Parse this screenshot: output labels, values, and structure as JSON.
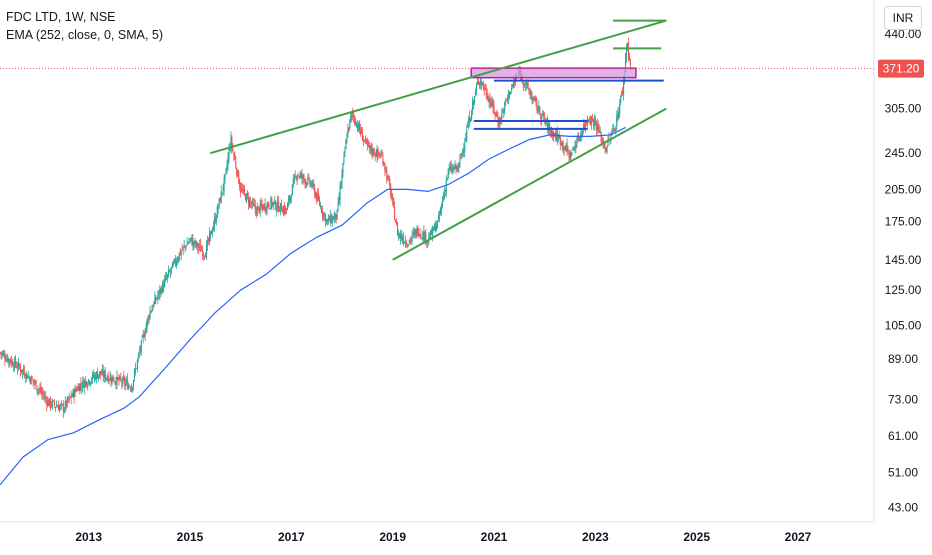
{
  "legend": {
    "symbol": "FDC LTD, 1W, NSE",
    "indicator": "EMA (252, close, 0, SMA, 5)"
  },
  "currency": "INR",
  "last_price_label": "371.20",
  "colors": {
    "candle_up": "#26a69a",
    "candle_down": "#ef5350",
    "ema": "#2962ff",
    "trendline": "#43a047",
    "support_line": "#1e4fd0",
    "zone_fill": "#d99ae0",
    "zone_stroke": "#9c27b0",
    "last_price": "#ef5350"
  },
  "chart_data": {
    "type": "candlestick",
    "y_scale": "log",
    "ylim": [
      40,
      520
    ],
    "xlim": [
      2011.25,
      2028.5
    ],
    "y_ticks": [
      {
        "value": 440,
        "label": "440.00"
      },
      {
        "value": 305,
        "label": "305.00"
      },
      {
        "value": 245,
        "label": "245.00"
      },
      {
        "value": 205,
        "label": "205.00"
      },
      {
        "value": 175,
        "label": "175.00"
      },
      {
        "value": 145,
        "label": "145.00"
      },
      {
        "value": 125,
        "label": "125.00"
      },
      {
        "value": 105,
        "label": "105.00"
      },
      {
        "value": 89,
        "label": "89.00"
      },
      {
        "value": 73,
        "label": "73.00"
      },
      {
        "value": 61,
        "label": "61.00"
      },
      {
        "value": 51,
        "label": "51.00"
      },
      {
        "value": 43,
        "label": "43.00"
      }
    ],
    "x_ticks": [
      {
        "value": 2013,
        "label": "2013"
      },
      {
        "value": 2015,
        "label": "2015"
      },
      {
        "value": 2017,
        "label": "2017"
      },
      {
        "value": 2019,
        "label": "2019"
      },
      {
        "value": 2021,
        "label": "2021"
      },
      {
        "value": 2023,
        "label": "2023"
      },
      {
        "value": 2025,
        "label": "2025"
      },
      {
        "value": 2027,
        "label": "2027"
      }
    ],
    "last_price": 371.2,
    "price_path": [
      [
        2011.25,
        92
      ],
      [
        2011.6,
        86
      ],
      [
        2011.9,
        80
      ],
      [
        2012.2,
        72
      ],
      [
        2012.5,
        70
      ],
      [
        2012.8,
        78
      ],
      [
        2013.2,
        83
      ],
      [
        2013.6,
        80
      ],
      [
        2013.85,
        78
      ],
      [
        2014.0,
        92
      ],
      [
        2014.2,
        112
      ],
      [
        2014.5,
        130
      ],
      [
        2014.8,
        150
      ],
      [
        2015.0,
        160
      ],
      [
        2015.3,
        150
      ],
      [
        2015.5,
        178
      ],
      [
        2015.7,
        218
      ],
      [
        2015.8,
        262
      ],
      [
        2016.0,
        205
      ],
      [
        2016.3,
        185
      ],
      [
        2016.6,
        192
      ],
      [
        2016.9,
        185
      ],
      [
        2017.1,
        222
      ],
      [
        2017.4,
        210
      ],
      [
        2017.7,
        175
      ],
      [
        2017.9,
        180
      ],
      [
        2018.1,
        270
      ],
      [
        2018.2,
        298
      ],
      [
        2018.5,
        252
      ],
      [
        2018.8,
        240
      ],
      [
        2018.95,
        205
      ],
      [
        2019.1,
        165
      ],
      [
        2019.3,
        158
      ],
      [
        2019.5,
        168
      ],
      [
        2019.7,
        160
      ],
      [
        2019.9,
        175
      ],
      [
        2020.1,
        225
      ],
      [
        2020.3,
        228
      ],
      [
        2020.5,
        285
      ],
      [
        2020.7,
        355
      ],
      [
        2020.85,
        330
      ],
      [
        2021.1,
        285
      ],
      [
        2021.3,
        330
      ],
      [
        2021.5,
        365
      ],
      [
        2021.7,
        330
      ],
      [
        2021.9,
        300
      ],
      [
        2022.1,
        275
      ],
      [
        2022.3,
        262
      ],
      [
        2022.5,
        242
      ],
      [
        2022.7,
        268
      ],
      [
        2022.85,
        292
      ],
      [
        2023.0,
        285
      ],
      [
        2023.2,
        250
      ],
      [
        2023.4,
        282
      ],
      [
        2023.55,
        340
      ],
      [
        2023.62,
        425
      ],
      [
        2023.7,
        371.2
      ]
    ],
    "ema_path": [
      [
        2011.25,
        48
      ],
      [
        2011.7,
        55
      ],
      [
        2012.2,
        60
      ],
      [
        2012.7,
        62
      ],
      [
        2013.2,
        66
      ],
      [
        2013.7,
        70
      ],
      [
        2014.0,
        74
      ],
      [
        2014.5,
        85
      ],
      [
        2015.0,
        98
      ],
      [
        2015.5,
        112
      ],
      [
        2016.0,
        125
      ],
      [
        2016.5,
        135
      ],
      [
        2017.0,
        150
      ],
      [
        2017.5,
        162
      ],
      [
        2018.0,
        172
      ],
      [
        2018.5,
        192
      ],
      [
        2018.9,
        205
      ],
      [
        2019.3,
        205
      ],
      [
        2019.7,
        203
      ],
      [
        2020.1,
        210
      ],
      [
        2020.5,
        222
      ],
      [
        2020.9,
        238
      ],
      [
        2021.3,
        250
      ],
      [
        2021.7,
        262
      ],
      [
        2022.1,
        268
      ],
      [
        2022.5,
        266
      ],
      [
        2022.9,
        266
      ],
      [
        2023.3,
        268
      ],
      [
        2023.6,
        278
      ]
    ],
    "annotations": {
      "upper_trendline": {
        "from": [
          2015.4,
          245
        ],
        "to": [
          2024.4,
          470
        ]
      },
      "lower_trendline": {
        "from": [
          2019.0,
          145
        ],
        "to": [
          2024.4,
          305
        ]
      },
      "resistance_zone": {
        "x": [
          2020.55,
          2023.8
        ],
        "y": [
          355,
          372
        ]
      },
      "support_lines": [
        {
          "x": [
            2021.0,
            2024.35
          ],
          "y": 350
        },
        {
          "x": [
            2020.6,
            2022.85
          ],
          "y": 287
        },
        {
          "x": [
            2020.6,
            2022.85
          ],
          "y": 276
        }
      ],
      "target_lines": [
        {
          "x": [
            2023.35,
            2024.4
          ],
          "y": 470
        },
        {
          "x": [
            2023.35,
            2024.3
          ],
          "y": 410
        }
      ]
    }
  }
}
